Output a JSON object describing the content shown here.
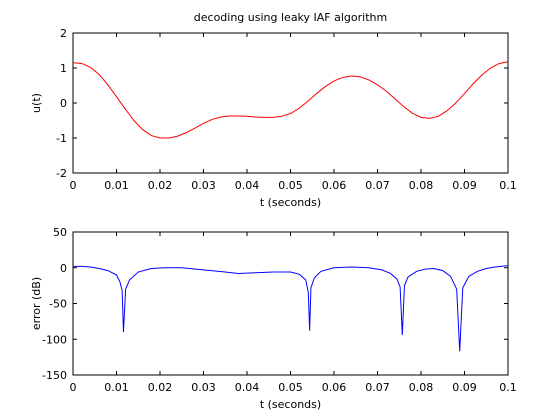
{
  "chart_data": [
    {
      "type": "line",
      "title": "decoding using leaky IAF algorithm",
      "xlabel": "t (seconds)",
      "ylabel": "u(t)",
      "xlim": [
        0,
        0.1
      ],
      "ylim": [
        -2,
        2
      ],
      "x_ticks": [
        0,
        0.01,
        0.02,
        0.03,
        0.04,
        0.05,
        0.06,
        0.07,
        0.08,
        0.09,
        0.1
      ],
      "x_tick_labels": [
        "0",
        "0.01",
        "0.02",
        "0.03",
        "0.04",
        "0.05",
        "0.06",
        "0.07",
        "0.08",
        "0.09",
        "0.1"
      ],
      "y_ticks": [
        -2,
        -1,
        0,
        1,
        2
      ],
      "y_tick_labels": [
        "-2",
        "-1",
        "0",
        "1",
        "2"
      ],
      "grid": false,
      "series": [
        {
          "color": "#ff0000",
          "x": [
            0,
            0.002,
            0.004,
            0.006,
            0.008,
            0.01,
            0.012,
            0.014,
            0.016,
            0.018,
            0.02,
            0.022,
            0.024,
            0.026,
            0.028,
            0.03,
            0.032,
            0.034,
            0.036,
            0.038,
            0.04,
            0.042,
            0.044,
            0.046,
            0.048,
            0.05,
            0.052,
            0.054,
            0.056,
            0.058,
            0.06,
            0.062,
            0.064,
            0.066,
            0.068,
            0.07,
            0.072,
            0.074,
            0.076,
            0.078,
            0.08,
            0.082,
            0.084,
            0.086,
            0.088,
            0.09,
            0.092,
            0.094,
            0.096,
            0.098,
            0.1
          ],
          "values": [
            1.15,
            1.13,
            1.02,
            0.82,
            0.52,
            0.18,
            -0.17,
            -0.5,
            -0.76,
            -0.93,
            -1.0,
            -1.0,
            -0.95,
            -0.85,
            -0.72,
            -0.58,
            -0.47,
            -0.4,
            -0.37,
            -0.37,
            -0.38,
            -0.4,
            -0.41,
            -0.41,
            -0.38,
            -0.3,
            -0.15,
            0.05,
            0.27,
            0.47,
            0.63,
            0.73,
            0.77,
            0.75,
            0.66,
            0.52,
            0.34,
            0.12,
            -0.1,
            -0.29,
            -0.41,
            -0.44,
            -0.38,
            -0.22,
            0.0,
            0.27,
            0.55,
            0.8,
            1.0,
            1.13,
            1.18
          ]
        }
      ]
    },
    {
      "type": "line",
      "title": "",
      "xlabel": "t (seconds)",
      "ylabel": "error (dB)",
      "xlim": [
        0,
        0.1
      ],
      "ylim": [
        -150,
        50
      ],
      "x_ticks": [
        0,
        0.01,
        0.02,
        0.03,
        0.04,
        0.05,
        0.06,
        0.07,
        0.08,
        0.09,
        0.1
      ],
      "x_tick_labels": [
        "0",
        "0.01",
        "0.02",
        "0.03",
        "0.04",
        "0.05",
        "0.06",
        "0.07",
        "0.08",
        "0.09",
        "0.1"
      ],
      "y_ticks": [
        -150,
        -100,
        -50,
        0,
        50
      ],
      "y_tick_labels": [
        "-150",
        "-100",
        "-50",
        "0",
        "50"
      ],
      "grid": false,
      "series": [
        {
          "color": "#0000ff",
          "x": [
            0,
            0.002,
            0.004,
            0.006,
            0.008,
            0.01,
            0.0108,
            0.0113,
            0.0116,
            0.0121,
            0.013,
            0.015,
            0.018,
            0.021,
            0.025,
            0.03,
            0.035,
            0.038,
            0.042,
            0.046,
            0.05,
            0.052,
            0.0535,
            0.0541,
            0.0544,
            0.0547,
            0.0555,
            0.057,
            0.06,
            0.064,
            0.068,
            0.071,
            0.073,
            0.0745,
            0.0752,
            0.0757,
            0.0762,
            0.077,
            0.079,
            0.081,
            0.083,
            0.085,
            0.0868,
            0.0882,
            0.0889,
            0.0896,
            0.091,
            0.093,
            0.095,
            0.097,
            0.1
          ],
          "values": [
            2,
            2,
            1,
            -1,
            -4,
            -10,
            -20,
            -32,
            -90,
            -30,
            -17,
            -6,
            -1,
            0,
            0,
            -3,
            -6,
            -8,
            -7,
            -6,
            -6,
            -9,
            -17,
            -35,
            -88,
            -28,
            -14,
            -5,
            0,
            1,
            0,
            -3,
            -8,
            -16,
            -27,
            -94,
            -25,
            -13,
            -5,
            -2,
            -1,
            -4,
            -12,
            -30,
            -117,
            -28,
            -12,
            -5,
            -1,
            1,
            3
          ]
        }
      ]
    }
  ]
}
